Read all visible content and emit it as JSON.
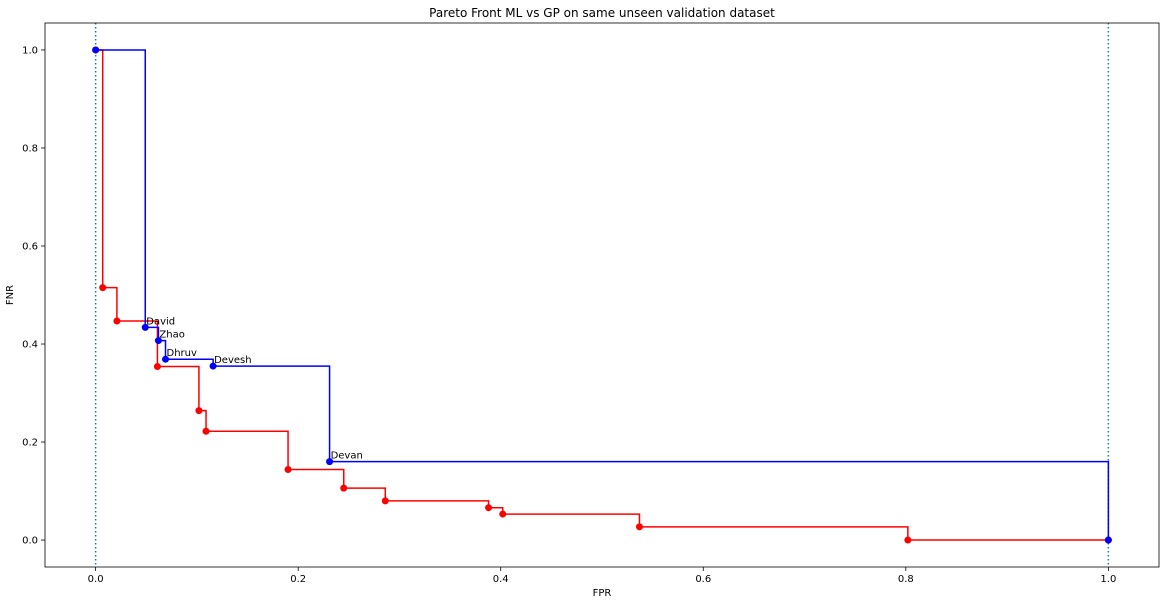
{
  "chart_data": {
    "type": "line",
    "title": "Pareto Front ML vs GP on same unseen validation dataset",
    "xlabel": "FPR",
    "ylabel": "FNR",
    "xlim": [
      -0.05,
      1.05
    ],
    "ylim": [
      -0.055,
      1.055
    ],
    "xticks": [
      "0.0",
      "0.2",
      "0.4",
      "0.6",
      "0.8",
      "1.0"
    ],
    "yticks": [
      "0.0",
      "0.2",
      "0.4",
      "0.6",
      "0.8",
      "1.0"
    ],
    "grid": false,
    "vlines": [
      0.0,
      1.0
    ],
    "colors": {
      "ml": "#0000ff",
      "gp": "#ff0000",
      "vline": "#1f77b4"
    },
    "series": [
      {
        "key": "gp",
        "x": [
          0.0,
          0.007,
          0.021,
          0.061,
          0.102,
          0.109,
          0.19,
          0.245,
          0.286,
          0.388,
          0.402,
          0.537,
          0.802,
          1.0
        ],
        "y": [
          1.0,
          0.515,
          0.447,
          0.354,
          0.264,
          0.222,
          0.144,
          0.106,
          0.08,
          0.066,
          0.053,
          0.027,
          0.0,
          0.0
        ]
      },
      {
        "key": "ml",
        "x": [
          0.0,
          0.049,
          0.062,
          0.069,
          0.116,
          0.231,
          1.0
        ],
        "y": [
          1.0,
          0.434,
          0.407,
          0.369,
          0.355,
          0.16,
          0.0
        ],
        "labels": [
          "",
          "David",
          "Zhao",
          "Dhruv",
          "Devesh",
          "Devan",
          ""
        ]
      }
    ]
  }
}
